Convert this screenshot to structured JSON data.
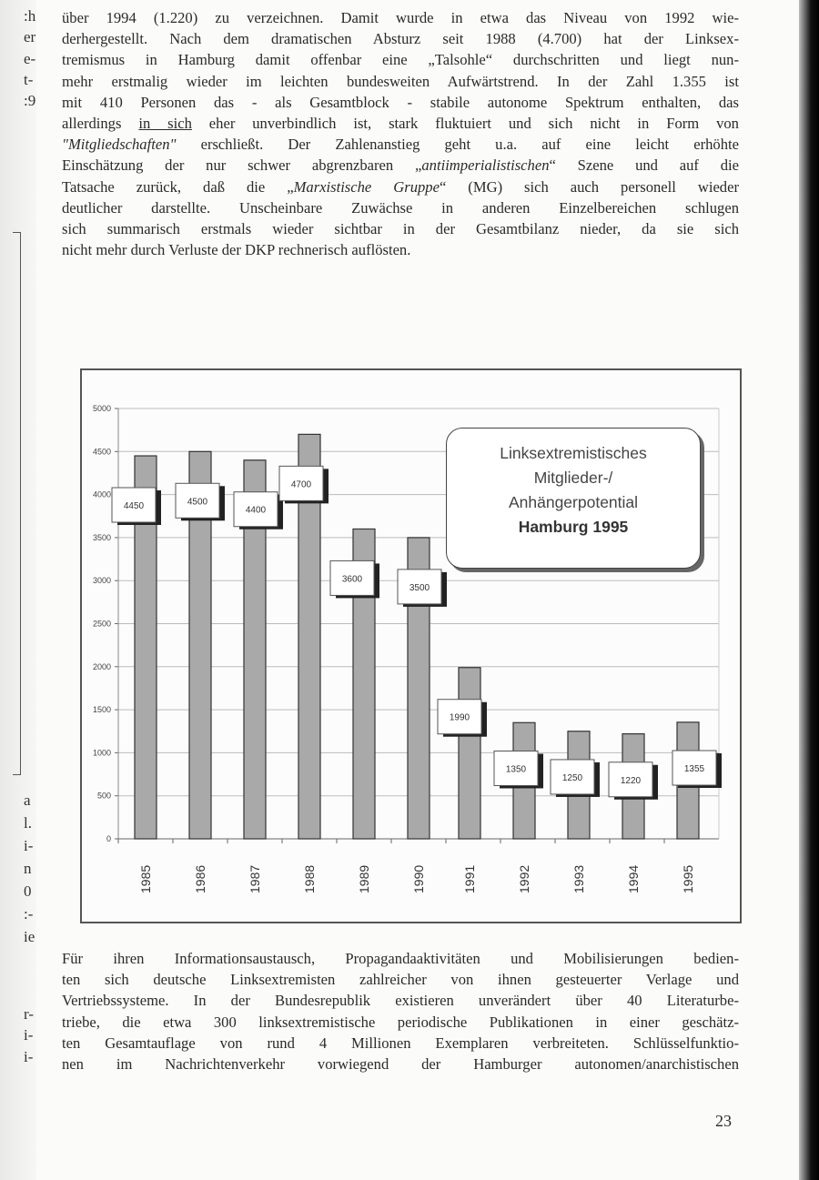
{
  "paragraph_top": [
    "über 1994 (1.220) zu verzeichnen. Damit wurde in etwa das Niveau von 1992 wie-",
    "derhergestellt. Nach dem dramatischen Absturz seit 1988 (4.700) hat der Linksex-",
    "tremismus in Hamburg damit offenbar eine „Talsohle“ durchschritten und liegt nun-",
    "mehr erstmalig wieder im leichten bundesweiten Aufwärtstrend. In der Zahl 1.355 ist",
    "mit 410 Personen das - als Gesamtblock - stabile autonome Spektrum enthalten, das"
  ],
  "line6": {
    "a": "allerdings ",
    "u": "in sich",
    "b": " eher unverbindlich ist, stark fluktuiert und sich nicht in Form von"
  },
  "line7": {
    "i": "\"Mitgliedschaften\"",
    "b": " erschließt. Der Zahlenanstieg geht u.a. auf eine leicht erhöhte"
  },
  "line8": {
    "a": "Einschätzung der nur schwer abgrenzbaren „",
    "i": "antiimperialistischen",
    "b": "“ Szene und auf die"
  },
  "line9": {
    "a": "Tatsache zurück, daß die „",
    "i": "Marxistische Gruppe",
    "b": "“ (MG) sich auch personell wieder"
  },
  "paragraph_top_rest": [
    "deutlicher darstellte. Unscheinbare Zuwächse in anderen Einzelbereichen schlugen",
    "sich summarisch erstmals wieder sichtbar in der Gesamtbilanz nieder, da sie sich",
    "nicht mehr durch Verluste der DKP rechnerisch auflösten."
  ],
  "paragraph_bottom": [
    "Für ihren Informationsaustausch, Propagandaaktivitäten und Mobilisierungen bedien-",
    "ten sich deutsche Linksextremisten zahlreicher von ihnen gesteuerter Verlage und",
    "Vertriebssysteme. In der Bundesrepublik existieren unverändert über 40 Literaturbe-",
    "triebe, die etwa 300 linksextremistische periodische Publikationen in einer geschätz-",
    "ten Gesamtauflage von rund 4 Millionen Exemplaren verbreiteten. Schlüsselfunktio-",
    "nen im Nachrichtenverkehr vorwiegend der Hamburger autonomen/anarchistischen"
  ],
  "page_number": "23",
  "margin_fragments": [
    ":h",
    "er",
    "e-",
    "t-",
    ":9",
    "a",
    "l.",
    "i-",
    "n",
    "0",
    ":-",
    "ie",
    "r-",
    "i-",
    "i-"
  ],
  "chart_data": {
    "type": "bar",
    "title": [
      "Linksextremistisches",
      "Mitglieder-/",
      "Anhängerpotential"
    ],
    "title_bold": "Hamburg 1995",
    "categories": [
      "1985",
      "1986",
      "1987",
      "1988",
      "1989",
      "1990",
      "1991",
      "1992",
      "1993",
      "1994",
      "1995"
    ],
    "values": [
      4450,
      4500,
      4400,
      4700,
      3600,
      3500,
      1990,
      1350,
      1250,
      1220,
      1355
    ],
    "data_labels": [
      "4450",
      "4500",
      "4400",
      "4700",
      "3600",
      "3500",
      "1990",
      "1350",
      "1250",
      "1220",
      "1355"
    ],
    "yticks": [
      0,
      500,
      1000,
      1500,
      2000,
      2500,
      3000,
      3500,
      4000,
      4500,
      5000
    ],
    "ylim": [
      0,
      5000
    ],
    "grid": true,
    "legend": "none",
    "bar_color": "#a9a9a9"
  }
}
